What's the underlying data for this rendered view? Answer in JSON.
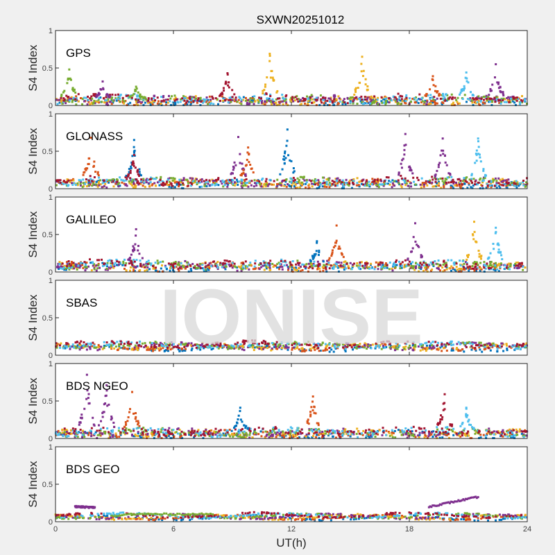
{
  "chart_data": {
    "type": "scatter",
    "title": "SXWN20251012",
    "xlabel": "UT(h)",
    "xlim": [
      0,
      24
    ],
    "xticks": [
      "0",
      "6",
      "12",
      "18",
      "24"
    ],
    "watermark": "IONISE",
    "series_colors": [
      "#0072BD",
      "#D95319",
      "#EDB120",
      "#7E2F8E",
      "#77AC30",
      "#4DBEEE",
      "#A2142F"
    ],
    "grid": false,
    "panels": [
      {
        "label": "GPS",
        "ylabel": "S4 Index",
        "ylim": [
          0,
          1
        ],
        "yticks": [
          "0",
          "0.5",
          "1"
        ],
        "baseline": 0.07,
        "peaks": [
          {
            "x": 0.7,
            "y": 0.48,
            "c": 4
          },
          {
            "x": 2.4,
            "y": 0.32,
            "c": 3
          },
          {
            "x": 4.1,
            "y": 0.25,
            "c": 4
          },
          {
            "x": 8.75,
            "y": 0.43,
            "c": 6
          },
          {
            "x": 10.9,
            "y": 0.69,
            "c": 2
          },
          {
            "x": 15.6,
            "y": 0.65,
            "c": 2
          },
          {
            "x": 19.2,
            "y": 0.39,
            "c": 1
          },
          {
            "x": 20.9,
            "y": 0.44,
            "c": 5
          },
          {
            "x": 22.4,
            "y": 0.55,
            "c": 3
          }
        ]
      },
      {
        "label": "GLONASS",
        "ylabel": "S4 Index",
        "ylim": [
          0,
          1
        ],
        "yticks": [
          "0",
          "0.5",
          "1"
        ],
        "baseline": 0.08,
        "peaks": [
          {
            "x": 1.8,
            "y": 0.68,
            "c": 1
          },
          {
            "x": 4.0,
            "y": 0.65,
            "c": 0
          },
          {
            "x": 4.0,
            "y": 0.45,
            "c": 6
          },
          {
            "x": 9.3,
            "y": 0.69,
            "c": 3
          },
          {
            "x": 9.8,
            "y": 0.55,
            "c": 1
          },
          {
            "x": 11.8,
            "y": 0.79,
            "c": 0
          },
          {
            "x": 17.8,
            "y": 0.73,
            "c": 3
          },
          {
            "x": 19.7,
            "y": 0.67,
            "c": 3
          },
          {
            "x": 21.5,
            "y": 0.67,
            "c": 5
          }
        ]
      },
      {
        "label": "GALILEO",
        "ylabel": "S4 Index",
        "ylim": [
          0,
          1
        ],
        "yticks": [
          "0",
          "0.5",
          "1"
        ],
        "baseline": 0.08,
        "peaks": [
          {
            "x": 4.1,
            "y": 0.57,
            "c": 3
          },
          {
            "x": 13.3,
            "y": 0.41,
            "c": 0
          },
          {
            "x": 14.3,
            "y": 0.62,
            "c": 1
          },
          {
            "x": 18.3,
            "y": 0.65,
            "c": 3
          },
          {
            "x": 21.3,
            "y": 0.67,
            "c": 2
          },
          {
            "x": 22.4,
            "y": 0.59,
            "c": 5
          }
        ]
      },
      {
        "label": "SBAS",
        "ylabel": "S4 Index",
        "ylim": [
          0,
          1
        ],
        "yticks": [
          "0",
          "0.5",
          "1"
        ],
        "baseline": 0.12,
        "peaks": []
      },
      {
        "label": "BDS NGEO",
        "ylabel": "S4 Index",
        "ylim": [
          0,
          1
        ],
        "yticks": [
          "0",
          "0.5",
          "1"
        ],
        "baseline": 0.07,
        "peaks": [
          {
            "x": 1.6,
            "y": 0.85,
            "c": 3
          },
          {
            "x": 2.6,
            "y": 0.71,
            "c": 3
          },
          {
            "x": 3.9,
            "y": 0.62,
            "c": 1
          },
          {
            "x": 9.4,
            "y": 0.41,
            "c": 0
          },
          {
            "x": 13.1,
            "y": 0.56,
            "c": 1
          },
          {
            "x": 19.8,
            "y": 0.59,
            "c": 6
          },
          {
            "x": 20.9,
            "y": 0.41,
            "c": 5
          }
        ]
      },
      {
        "label": "BDS GEO",
        "ylabel": "S4 Index",
        "ylim": [
          0,
          1
        ],
        "yticks": [
          "0",
          "0.5",
          "1"
        ],
        "baseline": 0.07,
        "segments": [
          {
            "x0": 1.0,
            "x1": 2.0,
            "y0": 0.2,
            "y1": 0.19,
            "c": 3
          },
          {
            "x0": 3.5,
            "x1": 8.0,
            "y0": 0.1,
            "y1": 0.1,
            "c": 4
          },
          {
            "x0": 19.0,
            "x1": 21.5,
            "y0": 0.2,
            "y1": 0.33,
            "c": 3
          }
        ],
        "peaks": []
      }
    ]
  }
}
